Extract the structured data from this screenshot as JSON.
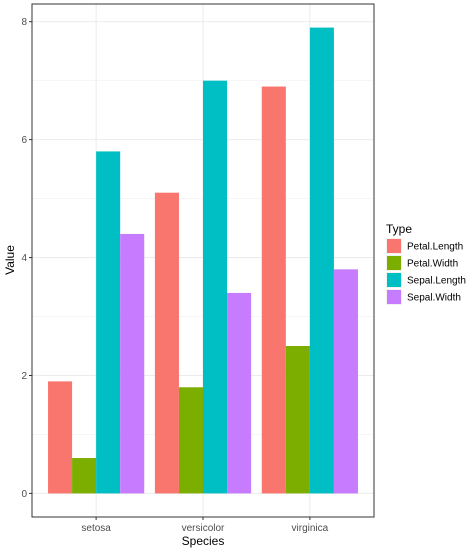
{
  "chart_data": {
    "type": "bar",
    "bar_mode": "grouped",
    "xlabel": "Species",
    "ylabel": "Value",
    "categories": [
      "setosa",
      "versicolor",
      "virginica"
    ],
    "series": [
      {
        "name": "Petal.Length",
        "color": "#F8766D",
        "values": [
          1.9,
          5.1,
          6.9
        ]
      },
      {
        "name": "Petal.Width",
        "color": "#7CAE00",
        "values": [
          0.6,
          1.8,
          2.5
        ]
      },
      {
        "name": "Sepal.Length",
        "color": "#00BFC4",
        "values": [
          5.8,
          7.0,
          7.9
        ]
      },
      {
        "name": "Sepal.Width",
        "color": "#C77CFF",
        "values": [
          4.4,
          3.4,
          3.8
        ]
      }
    ],
    "ylim": [
      -0.4,
      8.3
    ],
    "yticks": [
      0,
      2,
      4,
      6,
      8
    ],
    "grid": true,
    "legend": {
      "title": "Type",
      "position": "right"
    }
  }
}
